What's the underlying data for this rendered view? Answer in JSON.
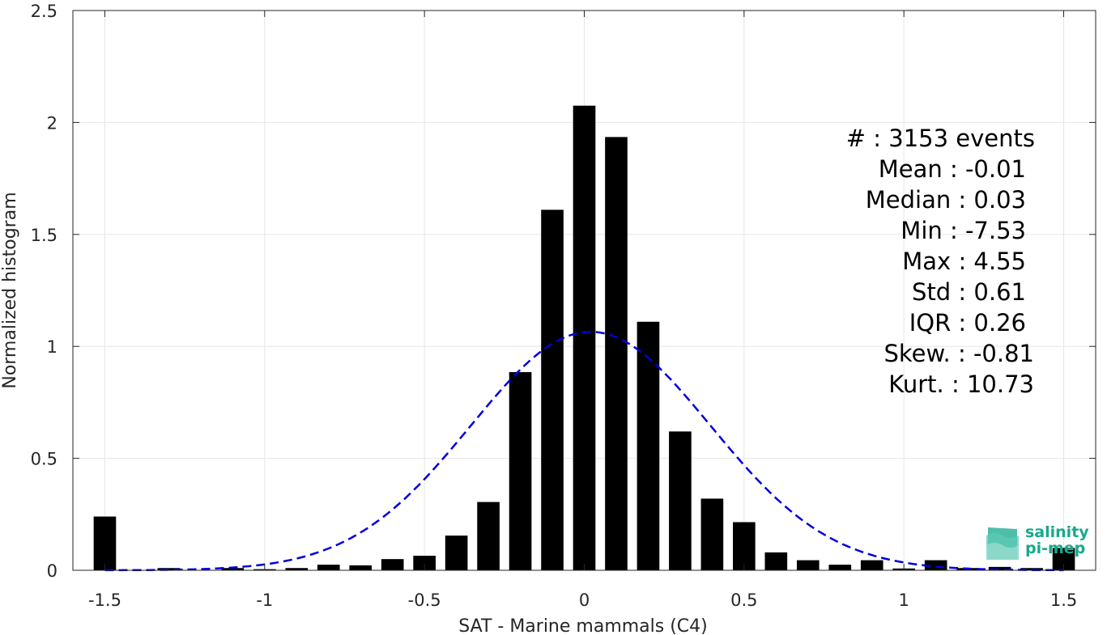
{
  "chart_data": {
    "type": "bar",
    "xlabel": "SAT - Marine mammals (C4)",
    "ylabel": "Normalized histogram",
    "xlim": [
      -1.6,
      1.6
    ],
    "ylim": [
      0,
      2.5
    ],
    "xticks": [
      -1.5,
      -1,
      -0.5,
      0,
      0.5,
      1,
      1.5
    ],
    "xtick_labels": [
      "-1.5",
      "-1",
      "-0.5",
      "0",
      "0.5",
      "1",
      "1.5"
    ],
    "yticks": [
      0,
      0.5,
      1,
      1.5,
      2,
      2.5
    ],
    "ytick_labels": [
      "0",
      "0.5",
      "1",
      "1.5",
      "2",
      "2.5"
    ],
    "grid": true,
    "bar_color": "#000000",
    "fit_color": "#0000dd",
    "bins": {
      "x": [
        -1.5,
        -1.4,
        -1.3,
        -1.2,
        -1.1,
        -1.0,
        -0.9,
        -0.8,
        -0.7,
        -0.6,
        -0.5,
        -0.4,
        -0.3,
        -0.2,
        -0.1,
        0.0,
        0.1,
        0.2,
        0.3,
        0.4,
        0.5,
        0.6,
        0.7,
        0.8,
        0.9,
        1.0,
        1.1,
        1.2,
        1.3,
        1.4,
        1.5
      ],
      "values": [
        0.24,
        0.0,
        0.01,
        0.0,
        0.01,
        0.005,
        0.01,
        0.025,
        0.022,
        0.05,
        0.065,
        0.155,
        0.305,
        0.885,
        1.61,
        2.075,
        1.935,
        1.11,
        0.62,
        0.32,
        0.215,
        0.08,
        0.045,
        0.025,
        0.045,
        0.008,
        0.045,
        0.01,
        0.015,
        0.01,
        0.1
      ]
    },
    "fit": {
      "type": "gaussian",
      "mean": 0.02,
      "std": 0.375,
      "peak": 1.065
    },
    "stats": [
      "#  : 3153 events",
      "Mean : -0.01",
      "Median : 0.03",
      "Min : -7.53",
      "Max : 4.55",
      "Std : 0.61",
      "IQR : 0.26",
      "Skew. : -0.81",
      "Kurt. : 10.73"
    ]
  },
  "logo": {
    "line1": "salinity",
    "line2": "pi-mep",
    "color": "#17a98c"
  }
}
